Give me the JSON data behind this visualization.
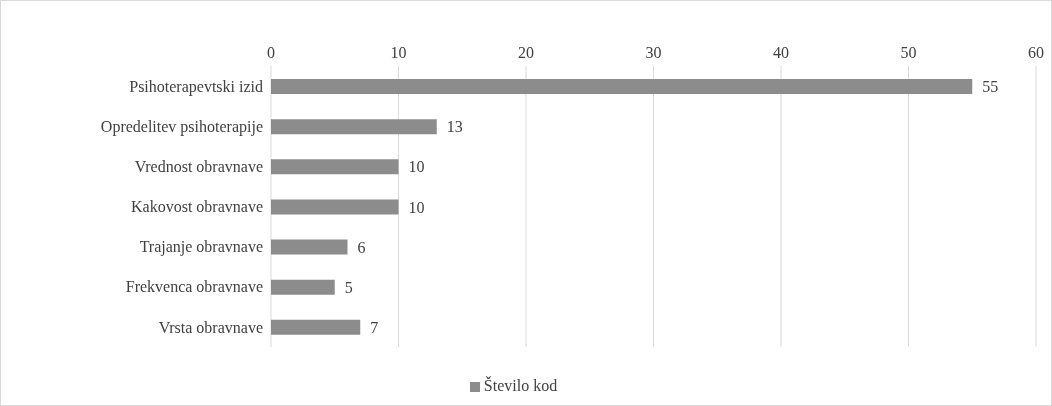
{
  "chart_data": {
    "type": "bar",
    "orientation": "horizontal",
    "categories": [
      "Psihoterapevtski izid",
      "Opredelitev psihoterapije",
      "Vrednost obravnave",
      "Kakovost obravnave",
      "Trajanje obravnave",
      "Frekvenca obravnave",
      "Vrsta obravnave"
    ],
    "series": [
      {
        "name": "Število kod",
        "color": "#8c8c8c",
        "values": [
          55,
          13,
          10,
          10,
          6,
          5,
          7
        ]
      }
    ],
    "xlim": [
      0,
      60
    ],
    "xticks": [
      0,
      10,
      20,
      30,
      40,
      50,
      60
    ],
    "grid": "x",
    "legend": "bottom",
    "data_labels": true
  }
}
